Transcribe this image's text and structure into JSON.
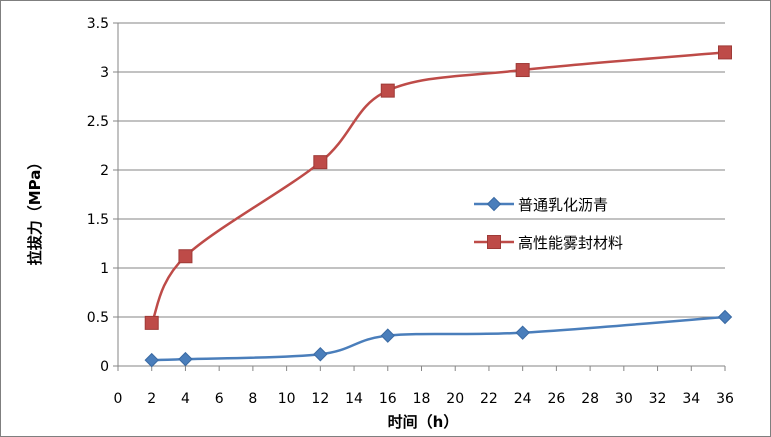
{
  "chart_data": {
    "type": "line",
    "title": "",
    "xlabel": "时间（h）",
    "ylabel": "拉拔力（MPa）",
    "xlim": [
      0,
      36
    ],
    "ylim": [
      0,
      3.5
    ],
    "x_ticks": [
      0,
      2,
      4,
      6,
      8,
      10,
      12,
      14,
      16,
      18,
      20,
      22,
      24,
      26,
      28,
      30,
      32,
      34,
      36
    ],
    "y_ticks": [
      0,
      0.5,
      1,
      1.5,
      2,
      2.5,
      3,
      3.5
    ],
    "x_tick_labels": [
      "0",
      "2",
      "4",
      "6",
      "8",
      "10",
      "12",
      "14",
      "16",
      "18",
      "20",
      "22",
      "24",
      "26",
      "28",
      "30",
      "32",
      "34",
      "36"
    ],
    "y_tick_labels": [
      "0",
      "0.5",
      "1",
      "1.5",
      "2",
      "2.5",
      "3",
      "3.5"
    ],
    "grid": "horizontal",
    "legend_position": "right",
    "smooth": true,
    "series": [
      {
        "name": "普通乳化沥青",
        "color": "#4a7ebb",
        "marker": "diamond",
        "x": [
          2,
          4,
          12,
          16,
          24,
          36
        ],
        "y": [
          0.06,
          0.07,
          0.12,
          0.31,
          0.34,
          0.5
        ]
      },
      {
        "name": "高性能雾封材料",
        "color": "#be4b48",
        "marker": "square",
        "x": [
          2,
          4,
          12,
          16,
          24,
          36
        ],
        "y": [
          0.44,
          1.12,
          2.08,
          2.81,
          3.02,
          3.2
        ]
      }
    ]
  }
}
